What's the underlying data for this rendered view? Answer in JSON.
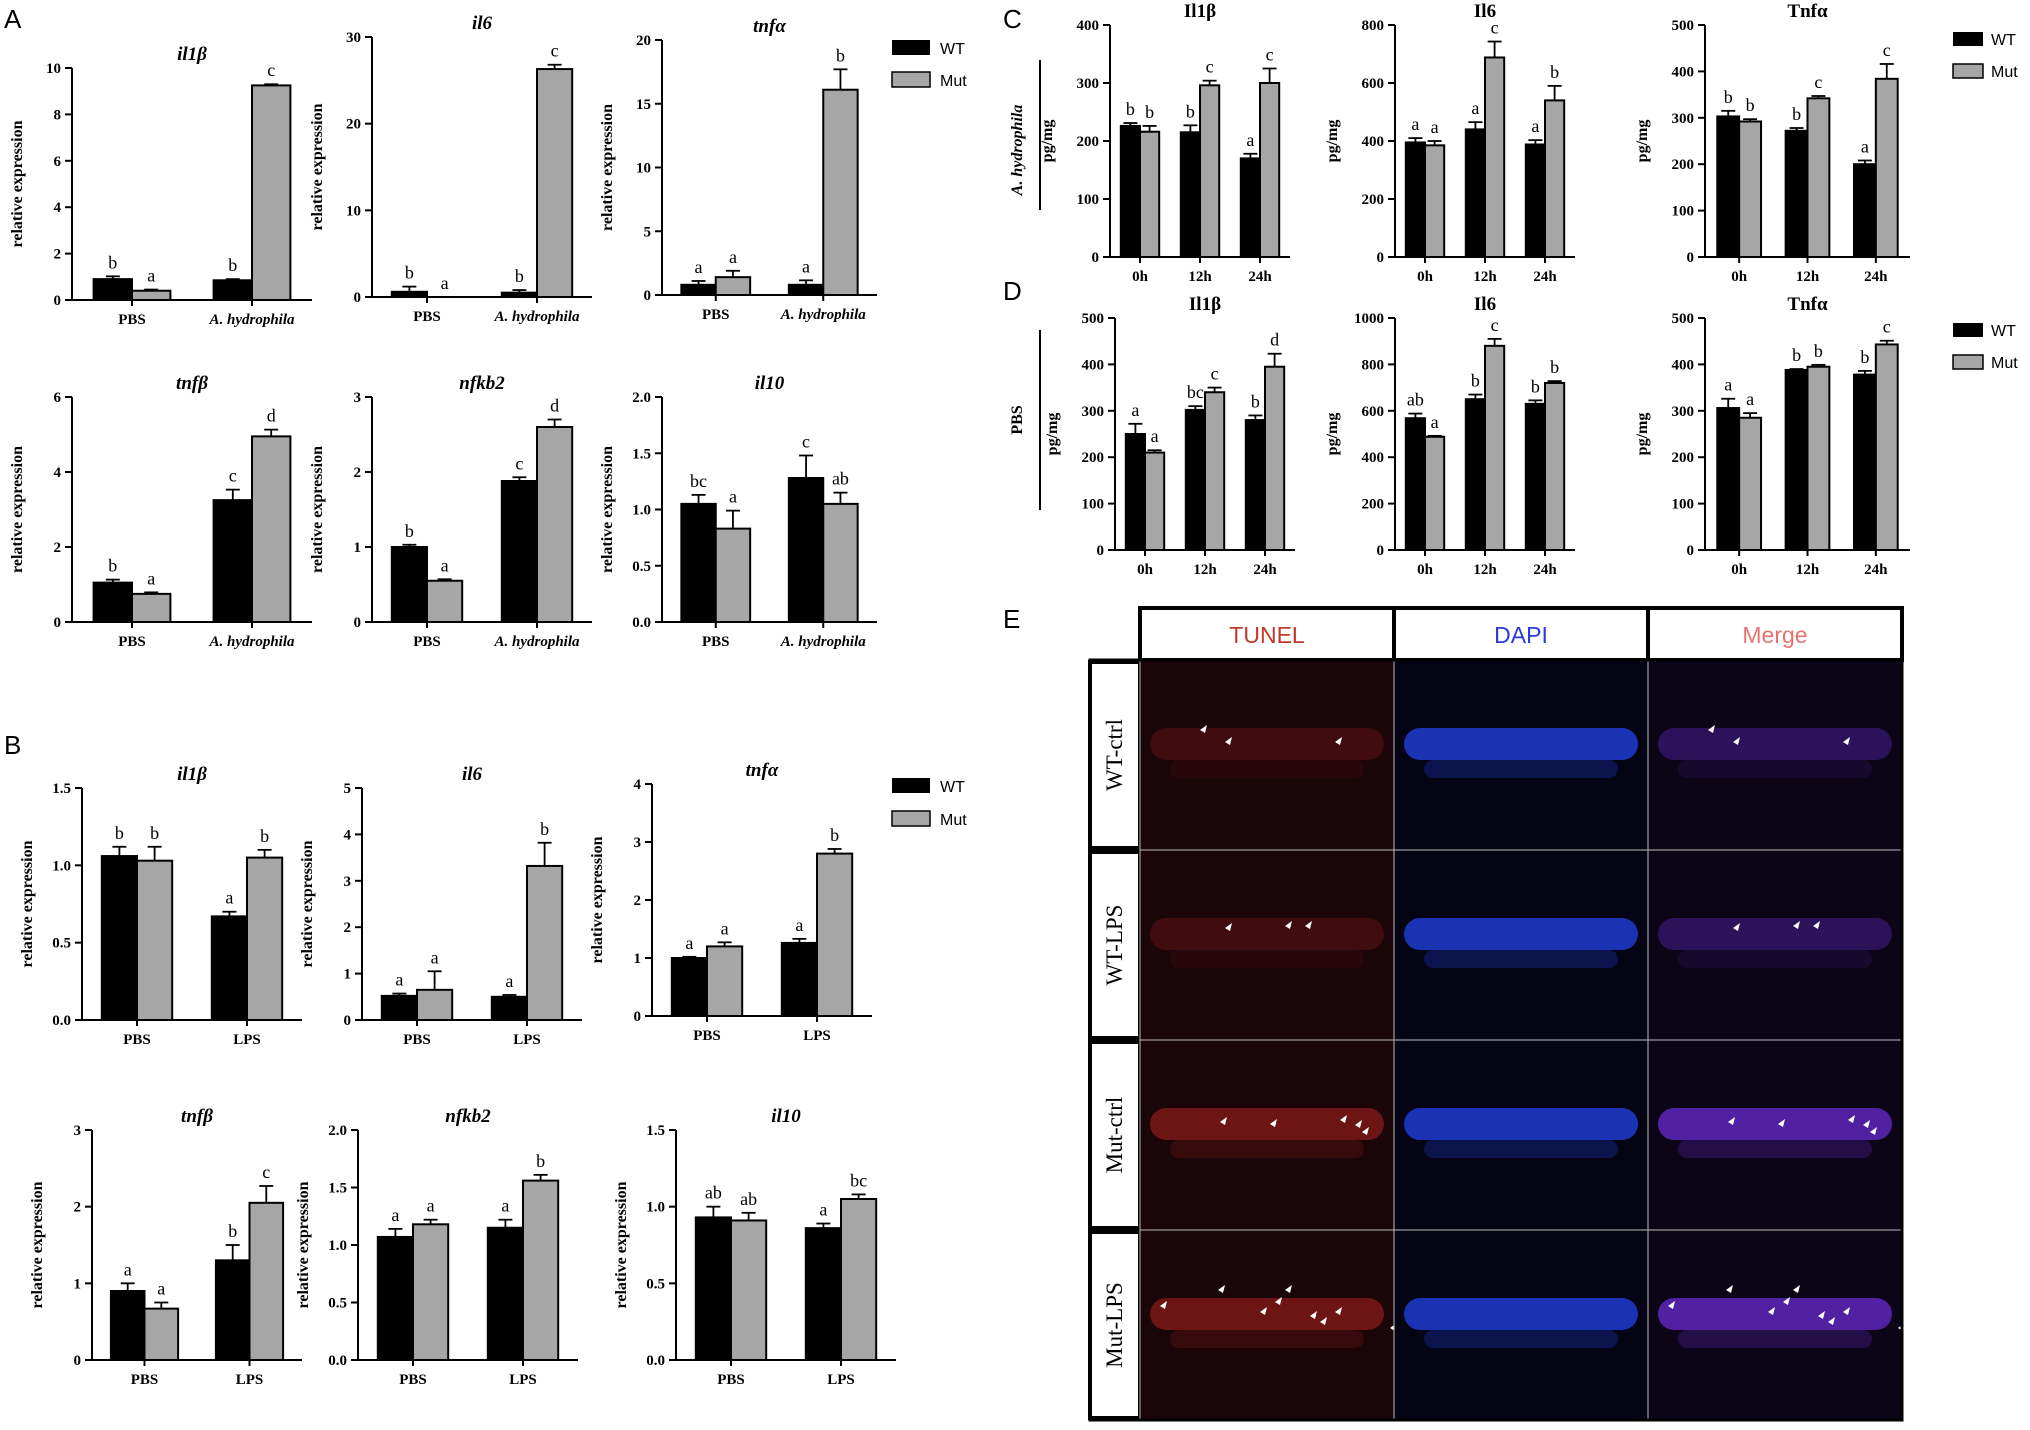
{
  "panels": {
    "A": "A",
    "B": "B",
    "C": "C",
    "D": "D",
    "E": "E"
  },
  "legend": {
    "wt": "WT",
    "mut": "Mut"
  },
  "colors": {
    "wt": "#000000",
    "mut": "#a6a6a6"
  },
  "side_labels": {
    "C": "A. hydrophila",
    "D": "PBS"
  },
  "microscopy": {
    "columns": [
      "TUNEL",
      "DAPI",
      "Merge"
    ],
    "column_colors": [
      "#c0392b",
      "#2a3ad8",
      "#e57373"
    ],
    "rows": [
      "WT-ctrl",
      "WT-LPS",
      "Mut-ctrl",
      "Mut-LPS"
    ]
  },
  "chart_data": [
    {
      "id": "A1",
      "type": "bar",
      "title": "il1β",
      "title_italic": true,
      "ylabel": "relative expression",
      "ylim": [
        0,
        10
      ],
      "yticks": [
        "0",
        "2",
        "4",
        "6",
        "8",
        "10"
      ],
      "categories": [
        "PBS",
        "A. hydrophila"
      ],
      "italic_categories": [
        false,
        true
      ],
      "series": [
        {
          "name": "WT",
          "values": [
            0.9,
            0.85
          ],
          "errors": [
            0.12,
            0.05
          ]
        },
        {
          "name": "Mut",
          "values": [
            0.4,
            9.25
          ],
          "errors": [
            0.05,
            0.05
          ]
        }
      ],
      "letters": [
        [
          "b",
          "a"
        ],
        [
          "b",
          "c"
        ]
      ]
    },
    {
      "id": "A2",
      "type": "bar",
      "title": "il6",
      "title_italic": true,
      "ylabel": "relative expression",
      "ylim": [
        0,
        30
      ],
      "yticks": [
        "0",
        "10",
        "20",
        "30"
      ],
      "categories": [
        "PBS",
        "A. hydrophila"
      ],
      "italic_categories": [
        false,
        true
      ],
      "series": [
        {
          "name": "WT",
          "values": [
            0.6,
            0.5
          ],
          "errors": [
            0.6,
            0.3
          ]
        },
        {
          "name": "Mut",
          "values": [
            0.0,
            26.3
          ],
          "errors": [
            0,
            0.5
          ]
        }
      ],
      "letters": [
        [
          "b",
          "a"
        ],
        [
          "b",
          "c"
        ]
      ]
    },
    {
      "id": "A3",
      "type": "bar",
      "title": "tnfα",
      "title_italic": true,
      "ylabel": "relative expression",
      "ylim": [
        0,
        20
      ],
      "yticks": [
        "0",
        "5",
        "10",
        "15",
        "20"
      ],
      "categories": [
        "PBS",
        "A. hydrophila"
      ],
      "italic_categories": [
        false,
        true
      ],
      "series": [
        {
          "name": "WT",
          "values": [
            0.8,
            0.8
          ],
          "errors": [
            0.3,
            0.35
          ]
        },
        {
          "name": "Mut",
          "values": [
            1.4,
            16.1
          ],
          "errors": [
            0.5,
            1.6
          ]
        }
      ],
      "letters": [
        [
          "a",
          "a"
        ],
        [
          "a",
          "b"
        ]
      ]
    },
    {
      "id": "A4",
      "type": "bar",
      "title": "tnfβ",
      "title_italic": true,
      "ylabel": "relative expression",
      "ylim": [
        0,
        6
      ],
      "yticks": [
        "0",
        "2",
        "4",
        "6"
      ],
      "categories": [
        "PBS",
        "A. hydrophila"
      ],
      "italic_categories": [
        false,
        true
      ],
      "series": [
        {
          "name": "WT",
          "values": [
            1.05,
            3.25
          ],
          "errors": [
            0.08,
            0.28
          ]
        },
        {
          "name": "Mut",
          "values": [
            0.75,
            4.95
          ],
          "errors": [
            0.04,
            0.18
          ]
        }
      ],
      "letters": [
        [
          "b",
          "a"
        ],
        [
          "c",
          "d"
        ]
      ]
    },
    {
      "id": "A5",
      "type": "bar",
      "title": "nfkb2",
      "title_italic": true,
      "ylabel": "relative expression",
      "ylim": [
        0,
        3
      ],
      "yticks": [
        "0",
        "1",
        "2",
        "3"
      ],
      "categories": [
        "PBS",
        "A. hydrophila"
      ],
      "italic_categories": [
        false,
        true
      ],
      "series": [
        {
          "name": "WT",
          "values": [
            1.0,
            1.88
          ],
          "errors": [
            0.03,
            0.05
          ]
        },
        {
          "name": "Mut",
          "values": [
            0.55,
            2.6
          ],
          "errors": [
            0.02,
            0.1
          ]
        }
      ],
      "letters": [
        [
          "b",
          "a"
        ],
        [
          "c",
          "d"
        ]
      ]
    },
    {
      "id": "A6",
      "type": "bar",
      "title": "il10",
      "title_italic": true,
      "ylabel": "relative expression",
      "ylim": [
        0,
        2
      ],
      "yticks": [
        "0.0",
        "0.5",
        "1.0",
        "1.5",
        "2.0"
      ],
      "categories": [
        "PBS",
        "A. hydrophila"
      ],
      "italic_categories": [
        false,
        true
      ],
      "series": [
        {
          "name": "WT",
          "values": [
            1.05,
            1.28
          ],
          "errors": [
            0.08,
            0.2
          ]
        },
        {
          "name": "Mut",
          "values": [
            0.83,
            1.05
          ],
          "errors": [
            0.16,
            0.1
          ]
        }
      ],
      "letters": [
        [
          "bc",
          "a"
        ],
        [
          "c",
          "ab"
        ]
      ]
    },
    {
      "id": "B1",
      "type": "bar",
      "title": "il1β",
      "title_italic": true,
      "ylabel": "relative expression",
      "ylim": [
        0,
        1.5
      ],
      "yticks": [
        "0.0",
        "0.5",
        "1.0",
        "1.5"
      ],
      "categories": [
        "PBS",
        "LPS"
      ],
      "italic_categories": [
        false,
        false
      ],
      "series": [
        {
          "name": "WT",
          "values": [
            1.06,
            0.67
          ],
          "errors": [
            0.06,
            0.03
          ]
        },
        {
          "name": "Mut",
          "values": [
            1.03,
            1.05
          ],
          "errors": [
            0.09,
            0.05
          ]
        }
      ],
      "letters": [
        [
          "b",
          "b"
        ],
        [
          "a",
          "b"
        ]
      ]
    },
    {
      "id": "B2",
      "type": "bar",
      "title": "il6",
      "title_italic": true,
      "ylabel": "relative expression",
      "ylim": [
        0,
        5
      ],
      "yticks": [
        "0",
        "1",
        "2",
        "3",
        "4",
        "5"
      ],
      "categories": [
        "PBS",
        "LPS"
      ],
      "italic_categories": [
        false,
        false
      ],
      "series": [
        {
          "name": "WT",
          "values": [
            0.52,
            0.5
          ],
          "errors": [
            0.05,
            0.04
          ]
        },
        {
          "name": "Mut",
          "values": [
            0.65,
            3.32
          ],
          "errors": [
            0.4,
            0.5
          ]
        }
      ],
      "letters": [
        [
          "a",
          "a"
        ],
        [
          "a",
          "b"
        ]
      ]
    },
    {
      "id": "B3",
      "type": "bar",
      "title": "tnfα",
      "title_italic": true,
      "ylabel": "relative expression",
      "ylim": [
        0,
        4
      ],
      "yticks": [
        "0",
        "1",
        "2",
        "3",
        "4"
      ],
      "categories": [
        "PBS",
        "LPS"
      ],
      "italic_categories": [
        false,
        false
      ],
      "series": [
        {
          "name": "WT",
          "values": [
            1.0,
            1.26
          ],
          "errors": [
            0.02,
            0.07
          ]
        },
        {
          "name": "Mut",
          "values": [
            1.2,
            2.8
          ],
          "errors": [
            0.07,
            0.08
          ]
        }
      ],
      "letters": [
        [
          "a",
          "a"
        ],
        [
          "a",
          "b"
        ]
      ]
    },
    {
      "id": "B4",
      "type": "bar",
      "title": "tnfβ",
      "title_italic": true,
      "ylabel": "relative expression",
      "ylim": [
        0,
        3
      ],
      "yticks": [
        "0",
        "1",
        "2",
        "3"
      ],
      "categories": [
        "PBS",
        "LPS"
      ],
      "italic_categories": [
        false,
        false
      ],
      "series": [
        {
          "name": "WT",
          "values": [
            0.9,
            1.3
          ],
          "errors": [
            0.1,
            0.2
          ]
        },
        {
          "name": "Mut",
          "values": [
            0.67,
            2.05
          ],
          "errors": [
            0.08,
            0.22
          ]
        }
      ],
      "letters": [
        [
          "a",
          "a"
        ],
        [
          "b",
          "c"
        ]
      ]
    },
    {
      "id": "B5",
      "type": "bar",
      "title": "nfkb2",
      "title_italic": true,
      "ylabel": "relative expression",
      "ylim": [
        0,
        2
      ],
      "yticks": [
        "0.0",
        "0.5",
        "1.0",
        "1.5",
        "2.0"
      ],
      "categories": [
        "PBS",
        "LPS"
      ],
      "italic_categories": [
        false,
        false
      ],
      "series": [
        {
          "name": "WT",
          "values": [
            1.07,
            1.15
          ],
          "errors": [
            0.07,
            0.07
          ]
        },
        {
          "name": "Mut",
          "values": [
            1.18,
            1.56
          ],
          "errors": [
            0.04,
            0.05
          ]
        }
      ],
      "letters": [
        [
          "a",
          "a"
        ],
        [
          "a",
          "b"
        ]
      ]
    },
    {
      "id": "B6",
      "type": "bar",
      "title": "il10",
      "title_italic": true,
      "ylabel": "relative expression",
      "ylim": [
        0,
        1.5
      ],
      "yticks": [
        "0.0",
        "0.5",
        "1.0",
        "1.5"
      ],
      "categories": [
        "PBS",
        "LPS"
      ],
      "italic_categories": [
        false,
        false
      ],
      "series": [
        {
          "name": "WT",
          "values": [
            0.93,
            0.86
          ],
          "errors": [
            0.07,
            0.03
          ]
        },
        {
          "name": "Mut",
          "values": [
            0.91,
            1.05
          ],
          "errors": [
            0.05,
            0.03
          ]
        }
      ],
      "letters": [
        [
          "ab",
          "ab"
        ],
        [
          "a",
          "bc"
        ]
      ]
    },
    {
      "id": "C1",
      "type": "bar",
      "title": "Il1β",
      "title_italic": false,
      "ylabel": "pg/mg",
      "ylim": [
        0,
        400
      ],
      "yticks": [
        "0",
        "100",
        "200",
        "300",
        "400"
      ],
      "categories": [
        "0h",
        "12h",
        "24h"
      ],
      "italic_categories": [
        false,
        false,
        false
      ],
      "series": [
        {
          "name": "WT",
          "values": [
            226,
            215,
            170
          ],
          "errors": [
            5,
            12,
            8
          ]
        },
        {
          "name": "Mut",
          "values": [
            216,
            296,
            300
          ],
          "errors": [
            10,
            8,
            25
          ]
        }
      ],
      "letters": [
        [
          "b",
          "b"
        ],
        [
          "b",
          "c"
        ],
        [
          "a",
          "c"
        ]
      ]
    },
    {
      "id": "C2",
      "type": "bar",
      "title": "Il6",
      "title_italic": false,
      "ylabel": "pg/mg",
      "ylim": [
        0,
        800
      ],
      "yticks": [
        "0",
        "200",
        "400",
        "600",
        "800"
      ],
      "categories": [
        "0h",
        "12h",
        "24h"
      ],
      "italic_categories": [
        false,
        false,
        false
      ],
      "series": [
        {
          "name": "WT",
          "values": [
            395,
            440,
            388
          ],
          "errors": [
            15,
            25,
            15
          ]
        },
        {
          "name": "Mut",
          "values": [
            385,
            688,
            540
          ],
          "errors": [
            15,
            55,
            50
          ]
        }
      ],
      "letters": [
        [
          "a",
          "a"
        ],
        [
          "a",
          "c"
        ],
        [
          "a",
          "b"
        ]
      ]
    },
    {
      "id": "C3",
      "type": "bar",
      "title": "Tnfα",
      "title_italic": false,
      "ylabel": "pg/mg",
      "ylim": [
        0,
        500
      ],
      "yticks": [
        "0",
        "100",
        "200",
        "300",
        "400",
        "500"
      ],
      "categories": [
        "0h",
        "12h",
        "24h"
      ],
      "italic_categories": [
        false,
        false,
        false
      ],
      "series": [
        {
          "name": "WT",
          "values": [
            303,
            272,
            200
          ],
          "errors": [
            12,
            6,
            8
          ]
        },
        {
          "name": "Mut",
          "values": [
            292,
            342,
            384
          ],
          "errors": [
            5,
            5,
            32
          ]
        }
      ],
      "letters": [
        [
          "b",
          "b"
        ],
        [
          "b",
          "c"
        ],
        [
          "a",
          "c"
        ]
      ]
    },
    {
      "id": "D1",
      "type": "bar",
      "title": "Il1β",
      "title_italic": false,
      "ylabel": "pg/mg",
      "ylim": [
        0,
        500
      ],
      "yticks": [
        "0",
        "100",
        "200",
        "300",
        "400",
        "500"
      ],
      "categories": [
        "0h",
        "12h",
        "24h"
      ],
      "italic_categories": [
        false,
        false,
        false
      ],
      "series": [
        {
          "name": "WT",
          "values": [
            250,
            302,
            280
          ],
          "errors": [
            22,
            8,
            10
          ]
        },
        {
          "name": "Mut",
          "values": [
            210,
            340,
            395
          ],
          "errors": [
            5,
            10,
            28
          ]
        }
      ],
      "letters": [
        [
          "a",
          "a"
        ],
        [
          "bc",
          "c"
        ],
        [
          "b",
          "d"
        ]
      ]
    },
    {
      "id": "D2",
      "type": "bar",
      "title": "Il6",
      "title_italic": false,
      "ylabel": "pg/mg",
      "ylim": [
        0,
        1000
      ],
      "yticks": [
        "0",
        "200",
        "400",
        "600",
        "800",
        "1000"
      ],
      "categories": [
        "0h",
        "12h",
        "24h"
      ],
      "italic_categories": [
        false,
        false,
        false
      ],
      "series": [
        {
          "name": "WT",
          "values": [
            568,
            650,
            630
          ],
          "errors": [
            20,
            20,
            15
          ]
        },
        {
          "name": "Mut",
          "values": [
            488,
            880,
            720
          ],
          "errors": [
            4,
            30,
            8
          ]
        }
      ],
      "letters": [
        [
          "ab",
          "a"
        ],
        [
          "b",
          "c"
        ],
        [
          "b",
          "b"
        ]
      ]
    },
    {
      "id": "D3",
      "type": "bar",
      "title": "Tnfα",
      "title_italic": false,
      "ylabel": "pg/mg",
      "ylim": [
        0,
        500
      ],
      "yticks": [
        "0",
        "100",
        "200",
        "300",
        "400",
        "500"
      ],
      "categories": [
        "0h",
        "12h",
        "24h"
      ],
      "italic_categories": [
        false,
        false,
        false
      ],
      "series": [
        {
          "name": "WT",
          "values": [
            306,
            388,
            378
          ],
          "errors": [
            20,
            2,
            8
          ]
        },
        {
          "name": "Mut",
          "values": [
            285,
            395,
            443
          ],
          "errors": [
            10,
            4,
            8
          ]
        }
      ],
      "letters": [
        [
          "a",
          "a"
        ],
        [
          "b",
          "b"
        ],
        [
          "b",
          "c"
        ]
      ]
    }
  ]
}
